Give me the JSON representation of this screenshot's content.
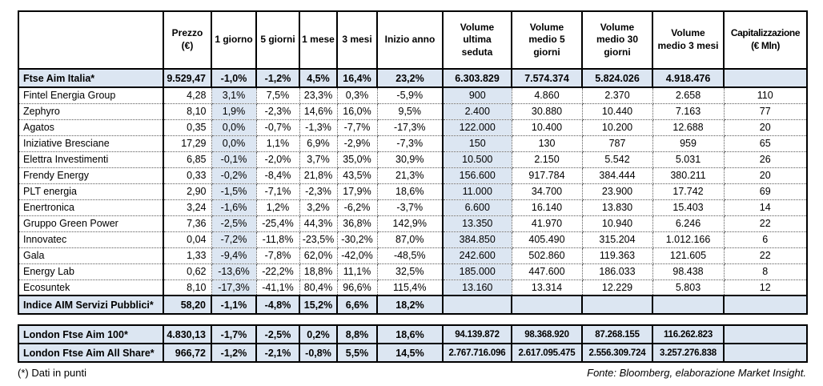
{
  "colors": {
    "row_shade": "#dce6f2",
    "border": "#000000",
    "background": "#ffffff"
  },
  "column_keys": [
    "name",
    "prezzo-eur",
    "1-giorno",
    "5-giorni",
    "1-mese",
    "3-mesi",
    "inizio-anno",
    "volume-ultima-seduta",
    "volume-medio-5-giorni",
    "volume-medio-30-giorni",
    "volume-medio-3-mesi",
    "capitalizzazione-eur-mln"
  ],
  "columns": [
    {
      "label": ""
    },
    {
      "label": "Prezzo\n(€)"
    },
    {
      "label": "1 giorno"
    },
    {
      "label": "5 giorni"
    },
    {
      "label": "1 mese"
    },
    {
      "label": "3 mesi"
    },
    {
      "label": "Inizio anno"
    },
    {
      "label": "Volume\nultima\nseduta"
    },
    {
      "label": "Volume\nmedio 5\ngiorni"
    },
    {
      "label": "Volume\nmedio 30\ngiorni"
    },
    {
      "label": "Volume\nmedio 3 mesi"
    },
    {
      "label": "Capitalizzazione\n(€ Mln)"
    }
  ],
  "table1": {
    "summary_row": {
      "name": "Ftse Aim Italia*",
      "values": [
        "9.529,47",
        "-1,0%",
        "-1,2%",
        "4,5%",
        "16,4%",
        "23,2%",
        "6.303.829",
        "7.574.374",
        "5.824.026",
        "4.918.476",
        ""
      ]
    },
    "rows": [
      {
        "name": "Fintel Energia Group",
        "values": [
          "4,28",
          "3,1%",
          "7,5%",
          "23,3%",
          "0,3%",
          "-5,9%",
          "900",
          "4.860",
          "2.370",
          "2.658",
          "110"
        ]
      },
      {
        "name": "Zephyro",
        "values": [
          "8,10",
          "1,9%",
          "-2,3%",
          "14,6%",
          "16,0%",
          "9,5%",
          "2.400",
          "30.880",
          "10.440",
          "7.163",
          "77"
        ]
      },
      {
        "name": "Agatos",
        "values": [
          "0,35",
          "0,0%",
          "-0,7%",
          "-1,3%",
          "-7,7%",
          "-17,3%",
          "122.000",
          "10.400",
          "10.200",
          "12.688",
          "20"
        ]
      },
      {
        "name": "Iniziative Bresciane",
        "values": [
          "17,29",
          "0,0%",
          "1,1%",
          "6,9%",
          "-2,9%",
          "-7,3%",
          "150",
          "130",
          "787",
          "959",
          "65"
        ]
      },
      {
        "name": "Elettra Investimenti",
        "values": [
          "6,85",
          "-0,1%",
          "-2,0%",
          "3,7%",
          "35,0%",
          "30,9%",
          "10.500",
          "2.150",
          "5.542",
          "5.031",
          "26"
        ]
      },
      {
        "name": "Frendy Energy",
        "values": [
          "0,33",
          "-0,2%",
          "-8,4%",
          "21,8%",
          "43,5%",
          "21,3%",
          "156.600",
          "917.784",
          "384.444",
          "380.211",
          "20"
        ]
      },
      {
        "name": "PLT energia",
        "values": [
          "2,90",
          "-1,5%",
          "-7,1%",
          "-2,3%",
          "17,9%",
          "18,6%",
          "11.000",
          "34.700",
          "23.900",
          "17.742",
          "69"
        ]
      },
      {
        "name": "Enertronica",
        "values": [
          "3,24",
          "-1,6%",
          "1,2%",
          "3,2%",
          "-6,2%",
          "-3,7%",
          "6.600",
          "16.140",
          "13.830",
          "15.403",
          "14"
        ]
      },
      {
        "name": "Gruppo Green Power",
        "values": [
          "7,36",
          "-2,5%",
          "-25,4%",
          "44,3%",
          "36,8%",
          "142,9%",
          "13.350",
          "41.970",
          "10.940",
          "6.246",
          "22"
        ]
      },
      {
        "name": "Innovatec",
        "values": [
          "0,04",
          "-7,2%",
          "-11,8%",
          "-23,5%",
          "-30,2%",
          "87,0%",
          "384.850",
          "405.490",
          "315.204",
          "1.012.166",
          "6"
        ]
      },
      {
        "name": "Gala",
        "values": [
          "1,33",
          "-9,4%",
          "-7,8%",
          "62,0%",
          "-42,0%",
          "-48,5%",
          "242.600",
          "502.860",
          "119.363",
          "121.605",
          "22"
        ]
      },
      {
        "name": "Energy Lab",
        "values": [
          "0,62",
          "-13,6%",
          "-22,2%",
          "18,8%",
          "11,1%",
          "32,5%",
          "185.000",
          "447.600",
          "186.033",
          "98.438",
          "8"
        ]
      },
      {
        "name": "Ecosuntek",
        "values": [
          "8,10",
          "-17,3%",
          "-41,1%",
          "80,4%",
          "96,6%",
          "115,4%",
          "13.160",
          "13.314",
          "12.229",
          "5.803",
          "12"
        ]
      }
    ],
    "index_row": {
      "name": "Indice AIM Servizi Pubblici*",
      "values": [
        "58,20",
        "-1,1%",
        "-4,8%",
        "15,2%",
        "6,6%",
        "18,2%",
        "",
        "",
        "",
        "",
        ""
      ]
    }
  },
  "table2": {
    "rows": [
      {
        "name": "London Ftse Aim 100*",
        "values": [
          "4.830,13",
          "-1,7%",
          "-2,5%",
          "0,2%",
          "8,8%",
          "18,6%",
          "94.139.872",
          "98.368.920",
          "87.268.155",
          "116.262.823",
          ""
        ]
      },
      {
        "name": "London Ftse Aim All Share*",
        "values": [
          "966,72",
          "-1,2%",
          "-2,1%",
          "-0,8%",
          "5,5%",
          "14,5%",
          "2.767.716.096",
          "2.617.095.475",
          "2.556.309.724",
          "3.257.276.838",
          ""
        ]
      }
    ]
  },
  "footnote": "(*) Dati in punti",
  "source": "Fonte: Bloomberg, elaborazione Market Insight."
}
